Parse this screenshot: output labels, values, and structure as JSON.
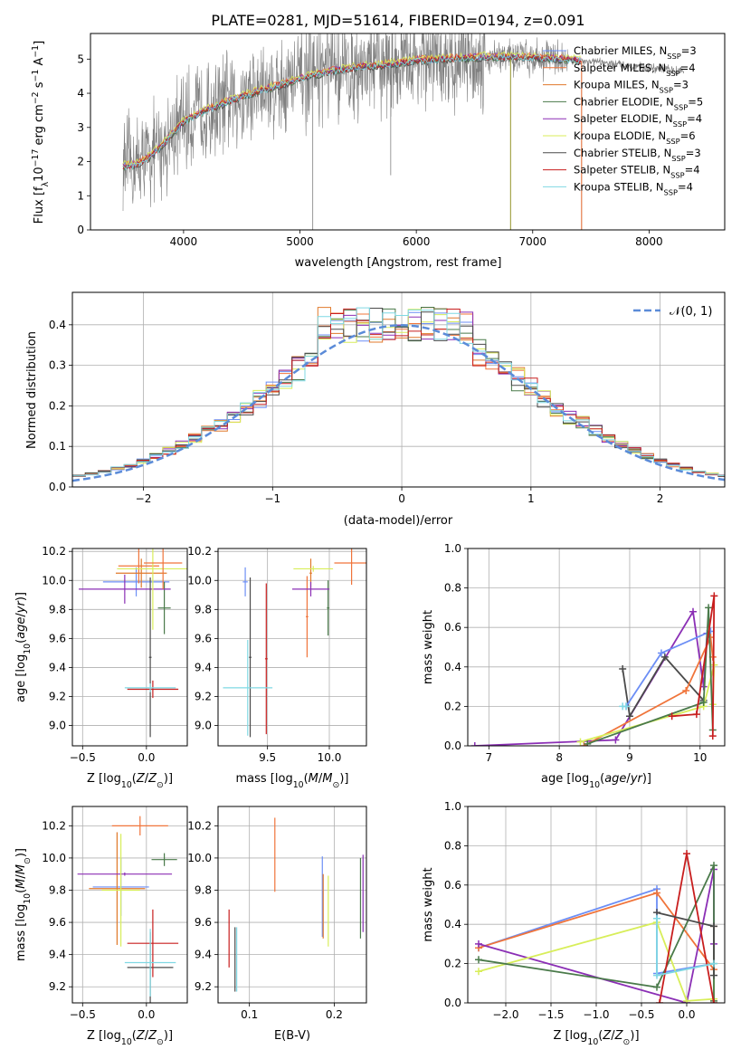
{
  "figure": {
    "title": "PLATE=0281, MJD=51614, FIBERID=0194, z=0.091"
  },
  "models": [
    {
      "name": "Chabrier MILES",
      "nssp": "3",
      "color": "#6c8ef5"
    },
    {
      "name": "Salpeter MILES",
      "nssp": "4",
      "color": "#f0743a"
    },
    {
      "name": "Kroupa MILES",
      "nssp": "3",
      "color": "#e0792b"
    },
    {
      "name": "Chabrier ELODIE",
      "nssp": "5",
      "color": "#4a7a4a"
    },
    {
      "name": "Salpeter ELODIE",
      "nssp": "4",
      "color": "#8b2fb5"
    },
    {
      "name": "Kroupa ELODIE",
      "nssp": "6",
      "color": "#d8ee5a"
    },
    {
      "name": "Chabrier STELIB",
      "nssp": "3",
      "color": "#4a4a4a"
    },
    {
      "name": "Salpeter STELIB",
      "nssp": "4",
      "color": "#c81e1e"
    },
    {
      "name": "Kroupa STELIB",
      "nssp": "4",
      "color": "#7fd8e3"
    }
  ],
  "chart_data": [
    {
      "id": "spectrum",
      "type": "line",
      "xlabel": "wavelength [Angstrom, rest frame]",
      "ylabel": "Flux [f_λ 10^-17 erg cm^-2 s^-1 A^-1]",
      "xlim": [
        3200,
        8650
      ],
      "ylim": [
        0,
        5.75
      ],
      "xticks": [
        4000,
        5000,
        6000,
        7000,
        8000
      ],
      "yticks": [
        0,
        1,
        2,
        3,
        4,
        5
      ],
      "data_color": "#808080",
      "data_range": [
        3480,
        8300
      ],
      "model_range": [
        3480,
        7420
      ],
      "model_series_color": "#7fd8e3",
      "continuum": [
        [
          3480,
          1.85
        ],
        [
          3600,
          1.9
        ],
        [
          3700,
          2.1
        ],
        [
          3800,
          2.4
        ],
        [
          3900,
          2.8
        ],
        [
          4000,
          3.15
        ],
        [
          4200,
          3.5
        ],
        [
          4500,
          3.9
        ],
        [
          4800,
          4.2
        ],
        [
          5000,
          4.4
        ],
        [
          5200,
          4.6
        ],
        [
          5500,
          4.75
        ],
        [
          5800,
          4.85
        ],
        [
          6000,
          4.95
        ],
        [
          6300,
          5.0
        ],
        [
          6600,
          5.05
        ],
        [
          6900,
          5.05
        ],
        [
          7200,
          5.0
        ],
        [
          7420,
          4.95
        ],
        [
          7700,
          4.85
        ],
        [
          8000,
          4.75
        ],
        [
          8300,
          4.65
        ]
      ],
      "spikes_down": [
        {
          "x": 5110,
          "y": 0.0
        },
        {
          "x": 5780,
          "y": 1.6
        },
        {
          "x": 6810,
          "y": 0.0
        },
        {
          "x": 7420,
          "y": 0.0
        }
      ]
    },
    {
      "id": "residual_hist",
      "type": "line",
      "xlabel": "(data-model)/error",
      "ylabel": "Normed distribution",
      "xlim": [
        -2.55,
        2.5
      ],
      "ylim": [
        0,
        0.48
      ],
      "xticks": [
        -2,
        -1,
        0,
        1,
        2
      ],
      "yticks": [
        0,
        0.1,
        0.2,
        0.3,
        0.4
      ],
      "bin_width": 0.1,
      "gauss": {
        "name": "N(0,1)",
        "legend": "𝒩(0, 1)",
        "color": "#5b8bd8"
      }
    },
    {
      "id": "age_vs_Z",
      "type": "scatter",
      "xlabel": "Z [log10(Z/Z☉)]",
      "ylabel": "age [log10(age/yr)]",
      "xlim": [
        -0.58,
        0.32
      ],
      "ylim": [
        8.86,
        10.22
      ],
      "xticks": [
        -0.5,
        0.0
      ],
      "yticks": [
        9.0,
        9.2,
        9.4,
        9.6,
        9.8,
        10.0,
        10.2
      ],
      "points": [
        {
          "m": 0,
          "x": -0.08,
          "y": 9.99,
          "xe": 0.26,
          "ye": 0.1
        },
        {
          "m": 1,
          "x": -0.06,
          "y": 10.1,
          "xe": 0.16,
          "ye": 0.12
        },
        {
          "m": 2,
          "x": -0.04,
          "y": 10.05,
          "xe": 0.2,
          "ye": 0.1
        },
        {
          "m": 3,
          "x": 0.14,
          "y": 9.81,
          "xe": 0.05,
          "ye": 0.18
        },
        {
          "m": 4,
          "x": -0.17,
          "y": 9.94,
          "xe": 0.36,
          "ye": 0.1
        },
        {
          "m": 5,
          "x": 0.05,
          "y": 10.08,
          "xe": 0.28,
          "ye": 0.42
        },
        {
          "m": 6,
          "x": 0.03,
          "y": 9.47,
          "xe": 0.01,
          "ye": 0.55
        },
        {
          "m": 7,
          "x": 0.05,
          "y": 9.25,
          "xe": 0.2,
          "ye": 0.06
        },
        {
          "m": 8,
          "x": 0.03,
          "y": 9.26,
          "xe": 0.2,
          "ye": 0.03
        },
        {
          "m": 1,
          "x": 0.13,
          "y": 10.12,
          "xe": 0.15,
          "ye": 0.18
        }
      ]
    },
    {
      "id": "age_vs_mass",
      "type": "scatter",
      "xlabel": "mass [log10(M/M☉)]",
      "ylabel": "",
      "xlim": [
        9.1,
        10.3
      ],
      "ylim": [
        8.86,
        10.22
      ],
      "xticks": [
        9.5,
        10.0
      ],
      "yticks": [
        9.0,
        9.2,
        9.4,
        9.6,
        9.8,
        10.0,
        10.2
      ],
      "points": [
        {
          "m": 0,
          "x": 9.32,
          "y": 9.99,
          "xe": 0.02,
          "ye": 0.1
        },
        {
          "m": 1,
          "x": 9.82,
          "y": 9.75,
          "xe": 0.01,
          "ye": 0.28
        },
        {
          "m": 2,
          "x": 9.85,
          "y": 10.05,
          "xe": 0.01,
          "ye": 0.1
        },
        {
          "m": 3,
          "x": 9.99,
          "y": 9.81,
          "xe": 0.01,
          "ye": 0.19
        },
        {
          "m": 4,
          "x": 9.85,
          "y": 9.94,
          "xe": 0.15,
          "ye": 0.05
        },
        {
          "m": 5,
          "x": 9.87,
          "y": 10.08,
          "xe": 0.16,
          "ye": 0.02
        },
        {
          "m": 6,
          "x": 9.36,
          "y": 9.47,
          "xe": 0.01,
          "ye": 0.55
        },
        {
          "m": 7,
          "x": 9.49,
          "y": 9.46,
          "xe": 0.01,
          "ye": 0.52
        },
        {
          "m": 8,
          "x": 9.34,
          "y": 9.26,
          "xe": 0.2,
          "ye": 0.33
        },
        {
          "m": 1,
          "x": 10.18,
          "y": 10.12,
          "xe": 0.14,
          "ye": 0.15
        }
      ]
    },
    {
      "id": "massweight_vs_age",
      "type": "line",
      "xlabel": "age [log10(age/yr)]",
      "ylabel": "mass weight",
      "xlim": [
        6.7,
        10.35
      ],
      "ylim": [
        0,
        1.0
      ],
      "xticks": [
        7,
        8,
        9,
        10
      ],
      "yticks": [
        0.0,
        0.2,
        0.4,
        0.6,
        0.8,
        1.0
      ],
      "series": [
        {
          "m": 4,
          "x": [
            6.8,
            8.8,
            9.9,
            10.05,
            10.1
          ],
          "y": [
            0.0,
            0.03,
            0.68,
            0.3,
            0.57
          ]
        },
        {
          "m": 6,
          "x": [
            8.9,
            9.0,
            9.5,
            10.05
          ],
          "y": [
            0.39,
            0.15,
            0.45,
            0.23
          ]
        },
        {
          "m": 0,
          "x": [
            8.95,
            9.45,
            10.15
          ],
          "y": [
            0.2,
            0.47,
            0.58
          ]
        },
        {
          "m": 1,
          "x": [
            8.35,
            9.8,
            10.15,
            10.18
          ],
          "y": [
            0.0,
            0.28,
            0.55,
            0.45
          ]
        },
        {
          "m": 5,
          "x": [
            8.3,
            10.05,
            10.2,
            10.18
          ],
          "y": [
            0.02,
            0.2,
            0.41,
            0.21
          ]
        },
        {
          "m": 8,
          "x": [
            8.9,
            8.95
          ],
          "y": [
            0.2,
            0.2
          ]
        },
        {
          "m": 3,
          "x": [
            8.4,
            10.05,
            10.12,
            10.18
          ],
          "y": [
            0.01,
            0.22,
            0.7,
            0.08
          ]
        },
        {
          "m": 7,
          "x": [
            9.6,
            9.95,
            10.2,
            10.18
          ],
          "y": [
            0.15,
            0.16,
            0.76,
            0.05
          ]
        }
      ]
    },
    {
      "id": "mass_vs_Z",
      "type": "scatter",
      "xlabel": "Z [log10(Z/Z☉)]",
      "ylabel": "mass [log10(M/M☉)]",
      "xlim": [
        -0.58,
        0.32
      ],
      "ylim": [
        9.1,
        10.32
      ],
      "xticks": [
        -0.5,
        0.0
      ],
      "yticks": [
        9.2,
        9.4,
        9.6,
        9.8,
        10.0,
        10.2
      ],
      "points": [
        {
          "m": 0,
          "x": -0.2,
          "y": 9.82,
          "xe": 0.22,
          "ye": 0.18
        },
        {
          "m": 1,
          "x": -0.05,
          "y": 10.2,
          "xe": 0.22,
          "ye": 0.06
        },
        {
          "m": 2,
          "x": -0.23,
          "y": 9.81,
          "xe": 0.22,
          "ye": 0.35
        },
        {
          "m": 3,
          "x": 0.14,
          "y": 9.99,
          "xe": 0.1,
          "ye": 0.04
        },
        {
          "m": 4,
          "x": -0.17,
          "y": 9.9,
          "xe": 0.37,
          "ye": 0.01
        },
        {
          "m": 5,
          "x": -0.2,
          "y": 9.8,
          "xe": 0.15,
          "ye": 0.35
        },
        {
          "m": 6,
          "x": 0.03,
          "y": 9.32,
          "xe": 0.18,
          "ye": 0.22
        },
        {
          "m": 7,
          "x": 0.05,
          "y": 9.47,
          "xe": 0.2,
          "ye": 0.21
        },
        {
          "m": 8,
          "x": 0.03,
          "y": 9.35,
          "xe": 0.2,
          "ye": 0.21
        }
      ]
    },
    {
      "id": "mass_vs_EBV",
      "type": "scatter",
      "xlabel": "E(B-V)",
      "ylabel": "",
      "xlim": [
        0.063,
        0.238
      ],
      "ylim": [
        9.1,
        10.32
      ],
      "xticks": [
        0.1,
        0.2
      ],
      "yticks": [
        9.2,
        9.4,
        9.6,
        9.8,
        10.0,
        10.2
      ],
      "points": [
        {
          "m": 0,
          "x": 0.186,
          "y": 9.76,
          "xe": 0,
          "ye": 0.25
        },
        {
          "m": 1,
          "x": 0.13,
          "y": 10.02,
          "xe": 0,
          "ye": 0.23
        },
        {
          "m": 2,
          "x": 0.187,
          "y": 9.7,
          "xe": 0,
          "ye": 0.2
        },
        {
          "m": 3,
          "x": 0.231,
          "y": 9.75,
          "xe": 0,
          "ye": 0.25
        },
        {
          "m": 4,
          "x": 0.234,
          "y": 9.78,
          "xe": 0,
          "ye": 0.24
        },
        {
          "m": 5,
          "x": 0.193,
          "y": 9.67,
          "xe": 0,
          "ye": 0.22
        },
        {
          "m": 6,
          "x": 0.083,
          "y": 9.37,
          "xe": 0,
          "ye": 0.2
        },
        {
          "m": 7,
          "x": 0.076,
          "y": 9.5,
          "xe": 0,
          "ye": 0.18
        },
        {
          "m": 8,
          "x": 0.085,
          "y": 9.37,
          "xe": 0,
          "ye": 0.2
        }
      ]
    },
    {
      "id": "massweight_vs_Z",
      "type": "line",
      "xlabel": "Z [log10(Z/Z☉)]",
      "ylabel": "mass weight",
      "xlim": [
        -2.42,
        0.42
      ],
      "ylim": [
        0,
        1.0
      ],
      "xticks": [
        -2.0,
        -1.5,
        -1.0,
        -0.5,
        0.0
      ],
      "yticks": [
        0.0,
        0.2,
        0.4,
        0.6,
        0.8,
        1.0
      ],
      "series": [
        {
          "m": 0,
          "x": [
            -2.3,
            -0.33,
            -0.33,
            0.3
          ],
          "y": [
            0.28,
            0.58,
            0.15,
            0.2
          ]
        },
        {
          "m": 1,
          "x": [
            -2.3,
            -0.33,
            0.3,
            0.3
          ],
          "y": [
            0.28,
            0.56,
            0.17,
            0.39
          ]
        },
        {
          "m": 4,
          "x": [
            -2.3,
            0.0,
            0.3,
            0.3
          ],
          "y": [
            0.3,
            0.0,
            0.68,
            0.3
          ]
        },
        {
          "m": 5,
          "x": [
            -2.3,
            -0.33,
            0.0,
            0.3,
            0.3
          ],
          "y": [
            0.16,
            0.41,
            0.01,
            0.02,
            0.2
          ]
        },
        {
          "m": 3,
          "x": [
            -2.3,
            -0.33,
            0.3,
            0.3
          ],
          "y": [
            0.22,
            0.08,
            0.7,
            0.01
          ]
        },
        {
          "m": 7,
          "x": [
            -0.3,
            0.0,
            0.3
          ],
          "y": [
            0.0,
            0.76,
            0.0
          ]
        },
        {
          "m": 6,
          "x": [
            -0.33,
            0.3,
            0.3
          ],
          "y": [
            0.46,
            0.39,
            0.14
          ]
        },
        {
          "m": 8,
          "x": [
            -0.33,
            -0.33,
            0.3
          ],
          "y": [
            0.43,
            0.14,
            0.2
          ]
        }
      ]
    }
  ]
}
